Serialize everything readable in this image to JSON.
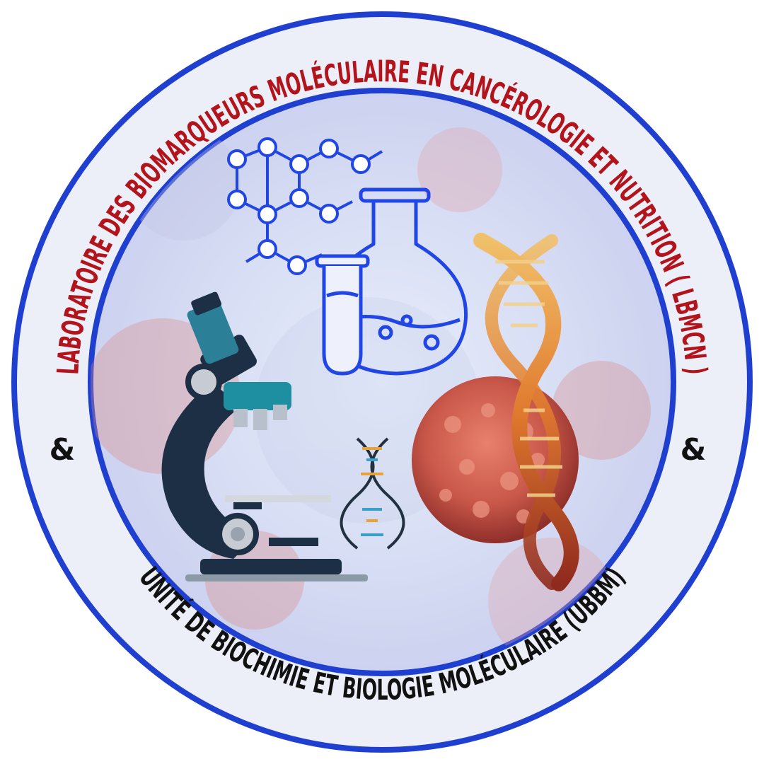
{
  "emblem": {
    "top_arc_text": "LABORATOIRE DES BIOMARQUEURS MOLÉCULAIRE EN CANCÉROLOGIE ET NUTRITION ( LBMCN )",
    "bottom_arc_text": "UNITÉ DE BIOCHIMIE ET BIOLOGIE MOLÉCULAIRE (UBBM)",
    "ampersand_left": "&",
    "ampersand_right": "&"
  },
  "colors": {
    "ring_blue": "#1f3fd1",
    "ring_fill": "#eceef8",
    "top_text": "#b3141b",
    "bottom_text": "#111111",
    "line_art_blue": "#2146e6",
    "microscope_dark": "#1d2f44",
    "microscope_teal": "#1e8fa0",
    "cell_red": "#c9584a",
    "dna_orange": "#e07a2e"
  },
  "icons": {
    "molecule": "molecule-icon",
    "flask": "flask-icon",
    "test_tube": "test-tube-icon",
    "microscope": "microscope-icon",
    "dna_small": "dna-icon",
    "dna_large": "dna-helix-icon",
    "cancer_cell": "cancer-cell-icon"
  }
}
